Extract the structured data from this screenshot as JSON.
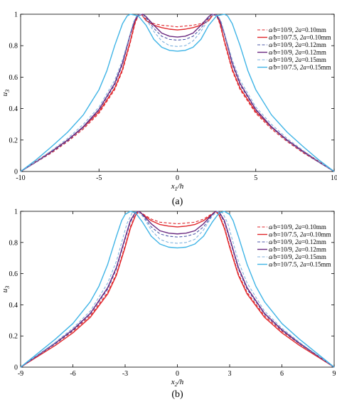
{
  "chart_data": [
    {
      "type": "line",
      "panel_label": "(a)",
      "xlabel": {
        "var": "x",
        "sub": "1",
        "rest": "/h"
      },
      "ylabel": {
        "var": "u",
        "sub": "3"
      },
      "xlim": [
        -10,
        10
      ],
      "ylim": [
        0,
        1
      ],
      "xticks": [
        -10,
        -5,
        0,
        5,
        10
      ],
      "yticks": [
        0,
        0.2,
        0.4,
        0.6,
        0.8,
        1
      ],
      "grid": false,
      "legend_position": "top-right",
      "series": [
        {
          "name": {
            "ratio_label": "a/b",
            "ratio": "=10/9,",
            "size_label": "2a",
            "size": "=0.10mm"
          },
          "color": "#e0262b",
          "dash": true,
          "x": [
            -10,
            -9,
            -8,
            -7,
            -6,
            -5,
            -4,
            -3.5,
            -3,
            -2.7,
            -2.5,
            -2.3,
            -2,
            -1.5,
            -1,
            -0.5,
            0,
            0.5,
            1,
            1.5,
            2,
            2.3,
            2.5,
            2.7,
            3,
            3.5,
            4,
            5,
            6,
            7,
            8,
            9,
            10
          ],
          "y": [
            0,
            0.06,
            0.12,
            0.19,
            0.27,
            0.37,
            0.52,
            0.64,
            0.82,
            0.94,
            0.99,
            1,
            0.97,
            0.94,
            0.93,
            0.925,
            0.92,
            0.925,
            0.93,
            0.94,
            0.97,
            1,
            0.99,
            0.94,
            0.82,
            0.64,
            0.52,
            0.37,
            0.27,
            0.19,
            0.12,
            0.06,
            0
          ]
        },
        {
          "name": {
            "ratio_label": "a/b",
            "ratio": "=10/7.5,",
            "size_label": "2a",
            "size": "=0.10mm"
          },
          "color": "#e0262b",
          "dash": false,
          "x": [
            -10,
            -9,
            -8,
            -7,
            -6,
            -5,
            -4,
            -3.5,
            -3,
            -2.7,
            -2.5,
            -2.3,
            -2,
            -1.5,
            -1,
            -0.5,
            0,
            0.5,
            1,
            1.5,
            2,
            2.3,
            2.5,
            2.7,
            3,
            3.5,
            4,
            5,
            6,
            7,
            8,
            9,
            10
          ],
          "y": [
            0,
            0.065,
            0.13,
            0.2,
            0.28,
            0.38,
            0.53,
            0.65,
            0.83,
            0.95,
            0.995,
            1,
            0.96,
            0.93,
            0.915,
            0.905,
            0.9,
            0.905,
            0.915,
            0.93,
            0.96,
            1,
            0.995,
            0.95,
            0.83,
            0.65,
            0.53,
            0.38,
            0.28,
            0.2,
            0.13,
            0.065,
            0
          ]
        },
        {
          "name": {
            "ratio_label": "a/b",
            "ratio": "=10/9,",
            "size_label": "2a",
            "size": "=0.12mm"
          },
          "color": "#4c58a8",
          "dash": true,
          "x": [
            -10,
            -9,
            -8,
            -7,
            -6,
            -5,
            -4,
            -3.5,
            -3,
            -2.7,
            -2.5,
            -2.2,
            -2,
            -1.5,
            -1,
            -0.5,
            0,
            0.5,
            1,
            1.5,
            2,
            2.2,
            2.5,
            2.7,
            3,
            3.5,
            4,
            5,
            6,
            7,
            8,
            9,
            10
          ],
          "y": [
            0,
            0.06,
            0.125,
            0.195,
            0.28,
            0.39,
            0.55,
            0.68,
            0.87,
            0.96,
            0.99,
            1,
            0.98,
            0.91,
            0.86,
            0.84,
            0.835,
            0.84,
            0.86,
            0.91,
            0.98,
            1,
            0.99,
            0.96,
            0.87,
            0.68,
            0.55,
            0.39,
            0.28,
            0.195,
            0.125,
            0.06,
            0
          ]
        },
        {
          "name": {
            "ratio_label": "a/b",
            "ratio": "=10/9,",
            "size_label": "2a",
            "size": "=0.12mm"
          },
          "color": "#6a2a80",
          "dash": false,
          "x": [
            -10,
            -9,
            -8,
            -7,
            -6,
            -5,
            -4,
            -3.5,
            -3,
            -2.7,
            -2.5,
            -2.2,
            -2,
            -1.5,
            -1,
            -0.5,
            0,
            0.5,
            1,
            1.5,
            2,
            2.2,
            2.5,
            2.7,
            3,
            3.5,
            4,
            5,
            6,
            7,
            8,
            9,
            10
          ],
          "y": [
            0,
            0.062,
            0.128,
            0.2,
            0.285,
            0.395,
            0.56,
            0.69,
            0.875,
            0.965,
            0.995,
            1,
            0.985,
            0.93,
            0.88,
            0.86,
            0.855,
            0.86,
            0.88,
            0.93,
            0.985,
            1,
            0.995,
            0.965,
            0.875,
            0.69,
            0.56,
            0.395,
            0.285,
            0.2,
            0.128,
            0.062,
            0
          ]
        },
        {
          "name": {
            "ratio_label": "a/b",
            "ratio": "=10/9,",
            "size_label": "2a",
            "size": "=0.15mm"
          },
          "color": "#7fb2df",
          "dash": true,
          "x": [
            -10,
            -9,
            -8,
            -7,
            -6,
            -5,
            -4,
            -3.5,
            -3,
            -2.8,
            -2.6,
            -2.3,
            -2,
            -1.5,
            -1,
            -0.5,
            0,
            0.5,
            1,
            1.5,
            2,
            2.3,
            2.6,
            2.8,
            3,
            3.5,
            4,
            5,
            6,
            7,
            8,
            9,
            10
          ],
          "y": [
            0,
            0.065,
            0.135,
            0.21,
            0.3,
            0.41,
            0.58,
            0.71,
            0.88,
            0.95,
            0.99,
            1,
            0.97,
            0.89,
            0.83,
            0.8,
            0.795,
            0.8,
            0.83,
            0.89,
            0.97,
            1,
            0.99,
            0.95,
            0.88,
            0.71,
            0.58,
            0.41,
            0.3,
            0.21,
            0.135,
            0.065,
            0
          ]
        },
        {
          "name": {
            "ratio_label": "a/b",
            "ratio": "=10/7.5,",
            "size_label": "2a",
            "size": "=0.15mm"
          },
          "color": "#3fb4e6",
          "dash": false,
          "x": [
            -10,
            -9,
            -8,
            -7,
            -6,
            -5,
            -4.5,
            -4,
            -3.5,
            -3.2,
            -3,
            -2.5,
            -2,
            -1.5,
            -1,
            -0.5,
            0,
            0.5,
            1,
            1.5,
            2,
            2.5,
            3,
            3.2,
            3.5,
            4,
            4.5,
            5,
            6,
            7,
            8,
            9,
            10
          ],
          "y": [
            0,
            0.075,
            0.16,
            0.25,
            0.36,
            0.52,
            0.64,
            0.8,
            0.94,
            0.99,
            1,
            0.99,
            0.93,
            0.84,
            0.79,
            0.77,
            0.765,
            0.77,
            0.79,
            0.84,
            0.93,
            0.99,
            1,
            0.99,
            0.94,
            0.8,
            0.64,
            0.52,
            0.36,
            0.25,
            0.16,
            0.075,
            0
          ]
        }
      ]
    },
    {
      "type": "line",
      "panel_label": "(b)",
      "xlabel": {
        "var": "x",
        "sub": "2",
        "rest": "/h"
      },
      "ylabel": {
        "var": "u",
        "sub": "3"
      },
      "xlim": [
        -9,
        9
      ],
      "ylim": [
        0,
        1
      ],
      "xticks": [
        -9,
        -6,
        -3,
        0,
        3,
        6,
        9
      ],
      "yticks": [
        0,
        0.2,
        0.4,
        0.6,
        0.8,
        1
      ],
      "grid": false,
      "legend_position": "top-right",
      "series": [
        {
          "name": {
            "ratio_label": "a/b",
            "ratio": "=10/9,",
            "size_label": "2a",
            "size": "=0.10mm"
          },
          "color": "#e0262b",
          "dash": true,
          "x": [
            -9,
            -8,
            -7,
            -6,
            -5,
            -4,
            -3.5,
            -3,
            -2.7,
            -2.4,
            -2.2,
            -2,
            -1.5,
            -1,
            -0.5,
            0,
            0.5,
            1,
            1.5,
            2,
            2.2,
            2.4,
            2.7,
            3,
            3.5,
            4,
            5,
            6,
            7,
            8,
            9
          ],
          "y": [
            0,
            0.075,
            0.15,
            0.23,
            0.33,
            0.48,
            0.6,
            0.78,
            0.9,
            0.98,
            1,
            0.985,
            0.95,
            0.93,
            0.925,
            0.92,
            0.925,
            0.93,
            0.95,
            0.985,
            1,
            0.98,
            0.9,
            0.78,
            0.6,
            0.48,
            0.33,
            0.23,
            0.15,
            0.075,
            0
          ]
        },
        {
          "name": {
            "ratio_label": "a/b",
            "ratio": "=10/7.5,",
            "size_label": "2a",
            "size": "=0.10mm"
          },
          "color": "#e0262b",
          "dash": false,
          "x": [
            -9,
            -8,
            -7,
            -6,
            -5,
            -4,
            -3.5,
            -3,
            -2.7,
            -2.4,
            -2.2,
            -2,
            -1.5,
            -1,
            -0.5,
            0,
            0.5,
            1,
            1.5,
            2,
            2.2,
            2.4,
            2.7,
            3,
            3.5,
            4,
            5,
            6,
            7,
            8,
            9
          ],
          "y": [
            0,
            0.07,
            0.14,
            0.22,
            0.32,
            0.47,
            0.59,
            0.77,
            0.89,
            0.975,
            1,
            0.98,
            0.94,
            0.915,
            0.905,
            0.9,
            0.905,
            0.915,
            0.94,
            0.98,
            1,
            0.975,
            0.89,
            0.77,
            0.59,
            0.47,
            0.32,
            0.22,
            0.14,
            0.07,
            0
          ]
        },
        {
          "name": {
            "ratio_label": "a/b",
            "ratio": "=10/9,",
            "size_label": "2a",
            "size": "=0.12mm"
          },
          "color": "#4c58a8",
          "dash": true,
          "x": [
            -9,
            -8,
            -7,
            -6,
            -5,
            -4,
            -3.5,
            -3,
            -2.7,
            -2.4,
            -2.2,
            -2,
            -1.5,
            -1,
            -0.5,
            0,
            0.5,
            1,
            1.5,
            2,
            2.2,
            2.4,
            2.7,
            3,
            3.5,
            4,
            5,
            6,
            7,
            8,
            9
          ],
          "y": [
            0,
            0.075,
            0.15,
            0.235,
            0.34,
            0.5,
            0.63,
            0.82,
            0.93,
            0.99,
            1,
            0.975,
            0.9,
            0.855,
            0.84,
            0.835,
            0.84,
            0.855,
            0.9,
            0.975,
            1,
            0.99,
            0.93,
            0.82,
            0.63,
            0.5,
            0.34,
            0.235,
            0.15,
            0.075,
            0
          ]
        },
        {
          "name": {
            "ratio_label": "a/b",
            "ratio": "=10/9,",
            "size_label": "2a",
            "size": "=0.12mm"
          },
          "color": "#6a2a80",
          "dash": false,
          "x": [
            -9,
            -8,
            -7,
            -6,
            -5,
            -4,
            -3.5,
            -3,
            -2.7,
            -2.4,
            -2.2,
            -2,
            -1.5,
            -1,
            -0.5,
            0,
            0.5,
            1,
            1.5,
            2,
            2.2,
            2.4,
            2.7,
            3,
            3.5,
            4,
            5,
            6,
            7,
            8,
            9
          ],
          "y": [
            0,
            0.078,
            0.155,
            0.24,
            0.345,
            0.51,
            0.64,
            0.83,
            0.94,
            0.995,
            1,
            0.98,
            0.92,
            0.875,
            0.86,
            0.855,
            0.86,
            0.875,
            0.92,
            0.98,
            1,
            0.995,
            0.94,
            0.83,
            0.64,
            0.51,
            0.345,
            0.24,
            0.155,
            0.078,
            0
          ]
        },
        {
          "name": {
            "ratio_label": "a/b",
            "ratio": "=10/9,",
            "size_label": "2a",
            "size": "=0.15mm"
          },
          "color": "#7fb2df",
          "dash": true,
          "x": [
            -9,
            -8,
            -7,
            -6,
            -5,
            -4,
            -3.5,
            -3.2,
            -2.9,
            -2.6,
            -2.3,
            -2,
            -1.5,
            -1,
            -0.5,
            0,
            0.5,
            1,
            1.5,
            2,
            2.3,
            2.6,
            2.9,
            3.2,
            3.5,
            4,
            5,
            6,
            7,
            8,
            9
          ],
          "y": [
            0,
            0.08,
            0.16,
            0.25,
            0.36,
            0.54,
            0.68,
            0.8,
            0.92,
            0.99,
            1,
            0.97,
            0.88,
            0.82,
            0.8,
            0.795,
            0.8,
            0.82,
            0.88,
            0.97,
            1,
            0.99,
            0.92,
            0.8,
            0.68,
            0.54,
            0.36,
            0.25,
            0.16,
            0.08,
            0
          ]
        },
        {
          "name": {
            "ratio_label": "a/b",
            "ratio": "=10/7.5,",
            "size_label": "2a",
            "size": "=0.15mm"
          },
          "color": "#3fb4e6",
          "dash": false,
          "x": [
            -9,
            -8,
            -7,
            -6,
            -5,
            -4.5,
            -4,
            -3.5,
            -3.2,
            -3,
            -2.7,
            -2.4,
            -2,
            -1.5,
            -1,
            -0.5,
            0,
            0.5,
            1,
            1.5,
            2,
            2.4,
            2.7,
            3,
            3.2,
            3.5,
            4,
            4.5,
            5,
            6,
            7,
            8,
            9
          ],
          "y": [
            0,
            0.09,
            0.18,
            0.28,
            0.42,
            0.52,
            0.66,
            0.84,
            0.94,
            0.98,
            1,
            0.99,
            0.93,
            0.84,
            0.79,
            0.77,
            0.765,
            0.77,
            0.79,
            0.84,
            0.93,
            0.99,
            1,
            0.98,
            0.94,
            0.84,
            0.66,
            0.52,
            0.42,
            0.28,
            0.18,
            0.09,
            0
          ]
        }
      ]
    }
  ]
}
